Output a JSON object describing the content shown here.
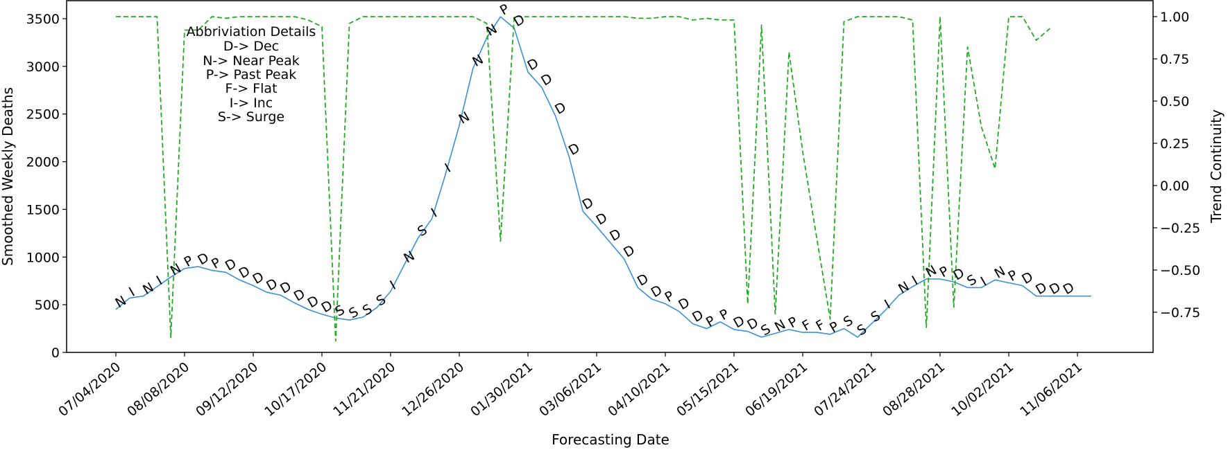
{
  "chart_data": {
    "type": "line",
    "title": "",
    "xlabel": "Forecasting Date",
    "ylabel": "Smoothed Weekly Deaths",
    "y2label": "Trend Continuity",
    "ylim": [
      0,
      3650
    ],
    "y2lim": [
      -0.99,
      1.1
    ],
    "grid": false,
    "x_tick_labels": [
      "07/04/2020",
      "08/08/2020",
      "09/12/2020",
      "10/17/2020",
      "11/21/2020",
      "12/26/2020",
      "01/30/2021",
      "03/06/2021",
      "04/10/2021",
      "05/15/2021",
      "06/19/2021",
      "07/24/2021",
      "08/28/2021",
      "10/02/2021",
      "11/06/2021"
    ],
    "y_ticks": [
      0,
      500,
      1000,
      1500,
      2000,
      2500,
      3000,
      3500
    ],
    "y2_ticks": [
      -0.75,
      -0.5,
      -0.25,
      0.0,
      0.25,
      0.5,
      0.75,
      1.0
    ],
    "y2_tick_labels": [
      "−0.75",
      "−0.50",
      "−0.25",
      "0.00",
      "0.25",
      "0.50",
      "0.75",
      "1.00"
    ],
    "annotation_box": {
      "title": "Abbriviation Details",
      "lines": [
        "D-> Dec",
        "N-> Near Peak",
        "P-> Past Peak",
        "F-> Flat",
        "I-> Inc",
        "S-> Surge"
      ]
    },
    "series": [
      {
        "name": "Smoothed Weekly Deaths",
        "axis": "left",
        "color": "#3a8fd6",
        "style": "solid",
        "weeks": [
          0,
          1,
          2,
          3,
          4,
          5,
          6,
          7,
          8,
          9,
          10,
          11,
          12,
          13,
          14,
          15,
          16,
          17,
          18,
          19,
          20,
          21,
          22,
          23,
          24,
          25,
          26,
          27,
          28,
          29,
          30,
          31,
          32,
          33,
          34,
          35,
          36,
          37,
          38,
          39,
          40,
          41,
          42,
          43,
          44,
          45,
          46,
          47,
          48,
          49,
          50,
          51,
          52,
          53,
          54,
          55,
          56,
          57,
          58,
          59,
          60,
          61,
          62,
          63,
          64,
          65,
          66,
          67,
          68,
          69,
          70,
          71
        ],
        "values": [
          450,
          570,
          590,
          690,
          790,
          880,
          900,
          860,
          840,
          760,
          700,
          630,
          600,
          520,
          450,
          400,
          360,
          340,
          370,
          470,
          640,
          920,
          1200,
          1400,
          1870,
          2380,
          2980,
          3300,
          3520,
          3400,
          2940,
          2780,
          2480,
          2050,
          1480,
          1320,
          1150,
          980,
          680,
          560,
          510,
          430,
          300,
          250,
          320,
          240,
          220,
          160,
          200,
          240,
          210,
          210,
          190,
          250,
          160,
          300,
          440,
          600,
          690,
          770,
          770,
          740,
          680,
          680,
          760,
          730,
          700,
          590,
          590,
          590,
          590,
          590
        ],
        "labels": [
          "N",
          "I",
          "N",
          "I",
          "N",
          "P",
          "D",
          "P",
          "D",
          "D",
          "D",
          "D",
          "D",
          "D",
          "D",
          "D",
          "S",
          "S",
          "S",
          "S",
          "I",
          "N",
          "S",
          "I",
          "I",
          "N",
          "N",
          "N",
          "P",
          "D",
          "D",
          "D",
          "D",
          "D",
          "D",
          "D",
          "D",
          "D",
          "D",
          "D",
          "P",
          "D",
          "D",
          "P",
          "P",
          "D",
          "D",
          "S",
          "N",
          "P",
          "F",
          "F",
          "P",
          "S",
          "S",
          "S",
          "I",
          "N",
          "I",
          "N",
          "P",
          "D",
          "S",
          "I",
          "N",
          "P",
          "D",
          "D",
          "D",
          "D",
          "",
          ""
        ]
      },
      {
        "name": "Trend Continuity",
        "axis": "right",
        "color": "#22aa22",
        "style": "dashed",
        "weeks": [
          0,
          1,
          2,
          3,
          4,
          5,
          6,
          7,
          8,
          9,
          10,
          11,
          12,
          13,
          14,
          15,
          16,
          17,
          18,
          19,
          20,
          21,
          22,
          23,
          24,
          25,
          26,
          27,
          28,
          29,
          30,
          31,
          32,
          33,
          34,
          35,
          36,
          37,
          38,
          39,
          40,
          41,
          42,
          43,
          44,
          45,
          46,
          47,
          48,
          49,
          50,
          51,
          52,
          53,
          54,
          55,
          56,
          57,
          58,
          59,
          60,
          61,
          62,
          63,
          64,
          65,
          66,
          67,
          68,
          69,
          70,
          71
        ],
        "values": [
          1.0,
          1.0,
          1.0,
          1.0,
          -0.9,
          0.92,
          0.92,
          1.0,
          0.99,
          1.0,
          1.0,
          1.0,
          1.0,
          1.0,
          0.98,
          0.94,
          -0.92,
          0.96,
          1.0,
          1.0,
          1.0,
          1.0,
          1.0,
          1.0,
          1.0,
          1.0,
          1.0,
          0.96,
          -0.33,
          1.0,
          1.0,
          1.0,
          1.0,
          1.0,
          1.0,
          1.0,
          1.0,
          1.0,
          0.99,
          0.99,
          1.0,
          1.0,
          0.98,
          0.99,
          0.98,
          0.98,
          -0.7,
          0.95,
          -0.76,
          0.79,
          0.2,
          -0.3,
          -0.79,
          0.97,
          1.0,
          1.0,
          1.0,
          1.0,
          0.98,
          -0.84,
          1.0,
          -0.72,
          0.82,
          0.35,
          0.1,
          1.0,
          1.0,
          0.86,
          0.93,
          null,
          null,
          null
        ]
      }
    ]
  }
}
